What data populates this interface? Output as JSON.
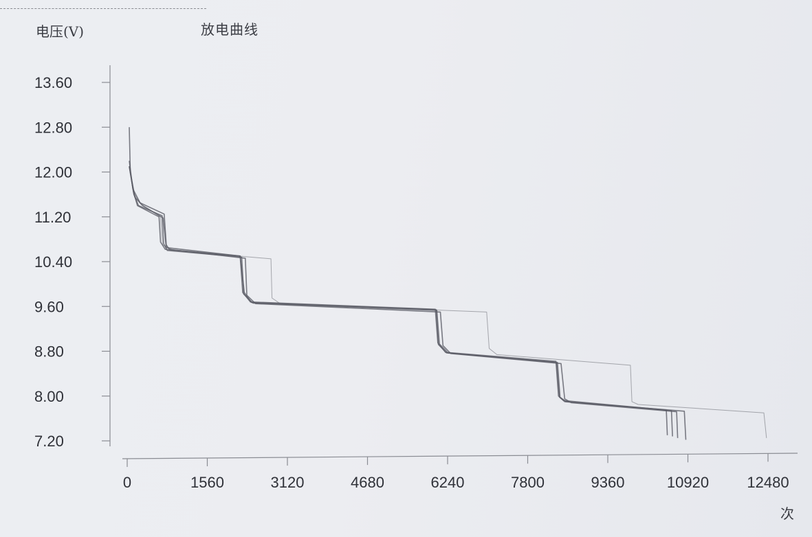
{
  "chart_data": {
    "type": "line",
    "title": "放电曲线",
    "ylabel": "电压(V)",
    "xlabel": "次",
    "ylim": [
      7.2,
      13.6
    ],
    "xlim": [
      0,
      12480
    ],
    "y_ticks": [
      "7.20",
      "8.00",
      "8.80",
      "9.60",
      "10.40",
      "11.20",
      "12.00",
      "12.80",
      "13.60"
    ],
    "x_ticks": [
      "0",
      "1560",
      "3120",
      "4680",
      "6240",
      "7800",
      "9360",
      "10920",
      "12480"
    ],
    "line_color": "#5b5d66",
    "series": [
      {
        "points": [
          [
            40,
            12.1
          ],
          [
            120,
            11.65
          ],
          [
            200,
            11.4
          ],
          [
            620,
            11.2
          ],
          [
            650,
            10.75
          ],
          [
            740,
            10.62
          ],
          [
            2200,
            10.5
          ],
          [
            2250,
            9.85
          ],
          [
            2400,
            9.68
          ],
          [
            6000,
            9.55
          ],
          [
            6050,
            8.95
          ],
          [
            6200,
            8.78
          ],
          [
            8350,
            8.62
          ],
          [
            8400,
            8.0
          ],
          [
            8500,
            7.92
          ],
          [
            10500,
            7.75
          ],
          [
            10520,
            7.3
          ]
        ]
      },
      {
        "points": [
          [
            40,
            12.1
          ],
          [
            130,
            11.6
          ],
          [
            220,
            11.4
          ],
          [
            680,
            11.22
          ],
          [
            710,
            10.72
          ],
          [
            780,
            10.6
          ],
          [
            2230,
            10.48
          ],
          [
            2270,
            9.82
          ],
          [
            2450,
            9.66
          ],
          [
            6030,
            9.53
          ],
          [
            6080,
            8.93
          ],
          [
            6250,
            8.77
          ],
          [
            8380,
            8.6
          ],
          [
            8430,
            7.98
          ],
          [
            8550,
            7.9
          ],
          [
            10600,
            7.74
          ],
          [
            10620,
            7.28
          ]
        ]
      },
      {
        "points": [
          [
            40,
            12.2
          ],
          [
            110,
            11.7
          ],
          [
            250,
            11.45
          ],
          [
            720,
            11.25
          ],
          [
            760,
            10.7
          ],
          [
            820,
            10.62
          ],
          [
            2300,
            10.46
          ],
          [
            2330,
            9.8
          ],
          [
            2500,
            9.65
          ],
          [
            6100,
            9.5
          ],
          [
            6150,
            8.9
          ],
          [
            6300,
            8.76
          ],
          [
            8450,
            8.58
          ],
          [
            8520,
            7.95
          ],
          [
            8650,
            7.88
          ],
          [
            10700,
            7.72
          ],
          [
            10720,
            7.25
          ]
        ]
      },
      {
        "points": [
          [
            40,
            12.1
          ],
          [
            140,
            11.6
          ],
          [
            280,
            11.42
          ],
          [
            650,
            11.2
          ],
          [
            690,
            10.7
          ],
          [
            900,
            10.6
          ],
          [
            2800,
            10.45
          ],
          [
            2820,
            9.75
          ],
          [
            2980,
            9.65
          ],
          [
            7000,
            9.5
          ],
          [
            7050,
            8.85
          ],
          [
            7200,
            8.74
          ],
          [
            9800,
            8.55
          ],
          [
            9830,
            7.9
          ],
          [
            9950,
            7.85
          ],
          [
            12400,
            7.7
          ],
          [
            12450,
            7.25
          ]
        ]
      },
      {
        "points": [
          [
            40,
            12.8
          ],
          [
            60,
            12.0
          ],
          [
            150,
            11.55
          ],
          [
            300,
            11.4
          ],
          [
            700,
            11.18
          ],
          [
            760,
            10.65
          ],
          [
            2200,
            10.5
          ],
          [
            2280,
            9.85
          ],
          [
            2420,
            9.67
          ],
          [
            6020,
            9.54
          ],
          [
            6060,
            8.92
          ],
          [
            6220,
            8.77
          ],
          [
            8360,
            8.6
          ],
          [
            8420,
            7.98
          ],
          [
            8520,
            7.9
          ],
          [
            10850,
            7.73
          ],
          [
            10880,
            7.22
          ]
        ]
      }
    ]
  }
}
